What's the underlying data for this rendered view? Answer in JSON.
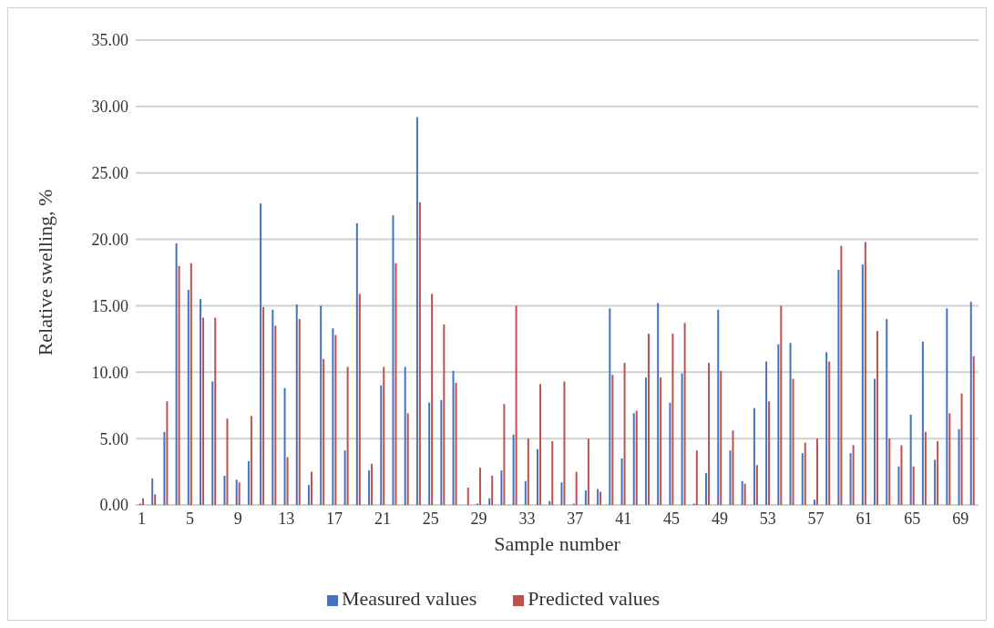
{
  "chart_data": {
    "type": "bar",
    "xlabel": "Sample number",
    "ylabel": "Relative swelling, %",
    "categories": [
      "1",
      null,
      null,
      null,
      "5",
      null,
      null,
      null,
      "9",
      null,
      null,
      null,
      "13",
      null,
      null,
      null,
      "17",
      null,
      null,
      null,
      "21",
      null,
      null,
      null,
      "25",
      null,
      null,
      null,
      "29",
      null,
      null,
      null,
      "33",
      null,
      null,
      null,
      "37",
      null,
      null,
      null,
      "41",
      null,
      null,
      null,
      "45",
      null,
      null,
      null,
      "49",
      null,
      null,
      null,
      "53",
      null,
      null,
      null,
      "57",
      null,
      null,
      null,
      "61",
      null,
      null,
      null,
      "65",
      null,
      null,
      null,
      "69",
      null
    ],
    "series": [
      {
        "name": "Measured values",
        "color": "#4472c4",
        "values": [
          0.1,
          2.0,
          5.5,
          19.7,
          16.2,
          15.5,
          9.3,
          2.2,
          1.9,
          3.3,
          22.7,
          14.7,
          8.8,
          15.1,
          1.5,
          15.0,
          13.3,
          4.1,
          21.2,
          2.6,
          9.0,
          21.8,
          10.4,
          29.2,
          7.7,
          7.9,
          10.1,
          0,
          0.1,
          0.5,
          2.6,
          5.3,
          1.8,
          4.2,
          0.3,
          1.7,
          0.1,
          1.1,
          1.2,
          14.8,
          3.5,
          6.9,
          9.6,
          15.2,
          7.7,
          9.9,
          0.1,
          2.4,
          14.7,
          4.1,
          1.8,
          7.3,
          10.8,
          12.1,
          12.2,
          3.9,
          0.4,
          11.5,
          17.7,
          3.9,
          18.1,
          9.5,
          14.0,
          2.9,
          6.8,
          12.3,
          3.4,
          14.8,
          5.7,
          15.3
        ]
      },
      {
        "name": "Predicted values",
        "color": "#c0504d",
        "values": [
          0.5,
          0.8,
          7.8,
          18.0,
          18.2,
          14.1,
          14.1,
          6.5,
          1.7,
          6.7,
          14.9,
          13.5,
          3.6,
          14.0,
          2.5,
          11.0,
          12.8,
          10.4,
          15.9,
          3.1,
          10.4,
          18.2,
          6.9,
          22.8,
          15.9,
          13.6,
          9.2,
          1.3,
          2.8,
          2.2,
          7.6,
          15.0,
          5.0,
          9.1,
          4.8,
          9.3,
          2.5,
          5.0,
          1.0,
          9.8,
          10.7,
          7.1,
          12.9,
          9.6,
          12.9,
          13.7,
          4.1,
          10.7,
          10.1,
          5.6,
          1.6,
          3.0,
          7.8,
          15.0,
          9.5,
          4.7,
          5.0,
          10.8,
          19.5,
          4.5,
          19.8,
          13.1,
          5.0,
          4.5,
          2.9,
          5.5,
          4.8,
          6.9,
          8.4,
          11.2
        ]
      }
    ],
    "ylim": [
      0,
      35
    ],
    "yticks": [
      {
        "value": 0,
        "label": "0.00"
      },
      {
        "value": 5,
        "label": "5.00"
      },
      {
        "value": 10,
        "label": "10.00"
      },
      {
        "value": 15,
        "label": "15.00"
      },
      {
        "value": 20,
        "label": "20.00"
      },
      {
        "value": 25,
        "label": "25.00"
      },
      {
        "value": 30,
        "label": "30.00"
      },
      {
        "value": 35,
        "label": "35.00"
      }
    ],
    "grid": "y",
    "legend": "bottom"
  }
}
